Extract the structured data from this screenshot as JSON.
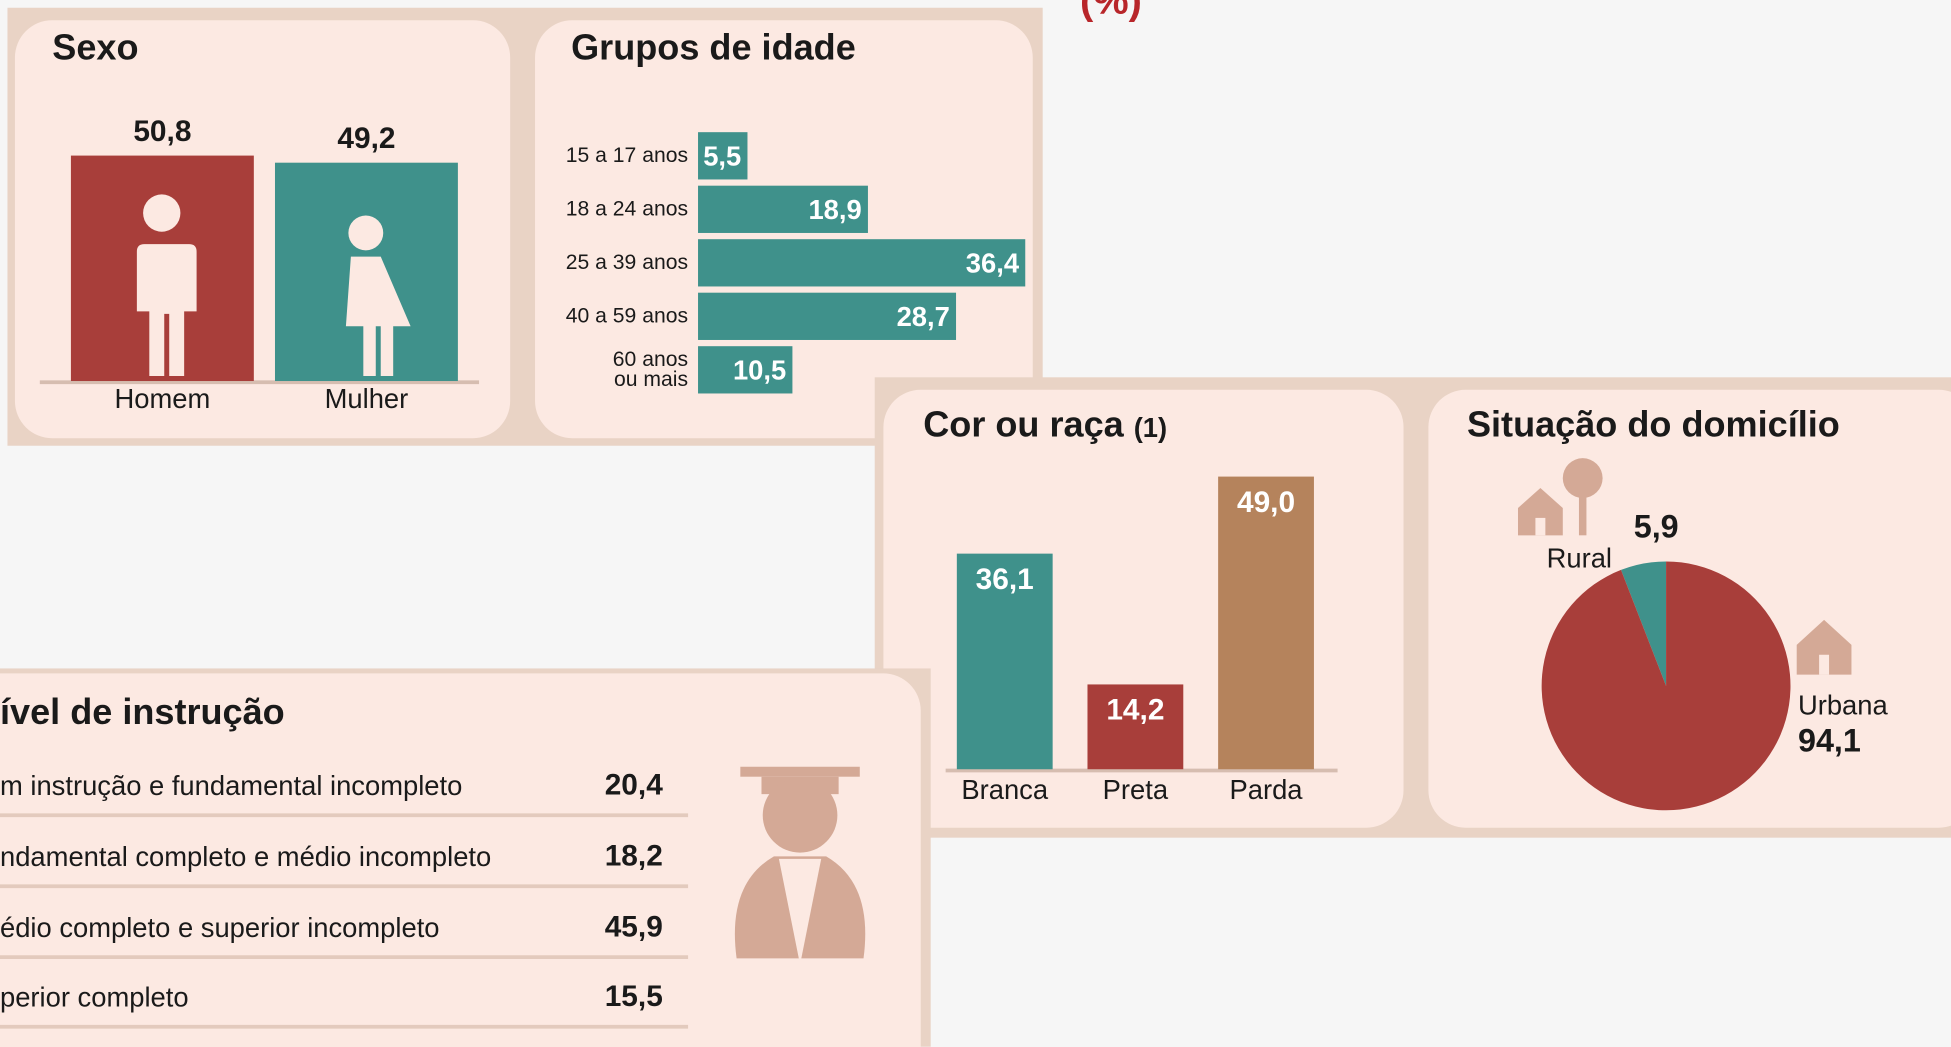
{
  "header": "(%)",
  "chart_data": [
    {
      "type": "bar",
      "title": "Sexo",
      "categories": [
        "Homem",
        "Mulher"
      ],
      "values": [
        50.8,
        49.2
      ],
      "value_labels": [
        "50,8",
        "49,2"
      ],
      "colors": [
        "#a83e3a",
        "#3f918b"
      ],
      "ylim": [
        0,
        60
      ]
    },
    {
      "type": "barh",
      "title": "Grupos de idade",
      "categories": [
        "15 a 17 anos",
        "18 a 24 anos",
        "25 a 39 anos",
        "40 a 59 anos",
        "60 anos\nou mais"
      ],
      "values": [
        5.5,
        18.9,
        36.4,
        28.7,
        10.5
      ],
      "value_labels": [
        "5,5",
        "18,9",
        "36,4",
        "28,7",
        "10,5"
      ],
      "color": "#3f918b",
      "xlim": [
        0,
        40
      ]
    },
    {
      "type": "bar",
      "title": "Cor ou raça",
      "title_note": "(1)",
      "categories": [
        "Branca",
        "Preta",
        "Parda"
      ],
      "values": [
        36.1,
        14.2,
        49.0
      ],
      "value_labels": [
        "36,1",
        "14,2",
        "49,0"
      ],
      "colors": [
        "#3f918b",
        "#a83e3a",
        "#b5835c"
      ],
      "ylim": [
        0,
        50
      ]
    },
    {
      "type": "pie",
      "title": "Situação do domicílio",
      "categories": [
        "Rural",
        "Urbana"
      ],
      "values": [
        5.9,
        94.1
      ],
      "value_labels": [
        "5,9",
        "94,1"
      ],
      "colors": [
        "#3f918b",
        "#a83e3a"
      ]
    },
    {
      "type": "list",
      "title": "ível de instrução",
      "categories": [
        "m instrução e fundamental incompleto",
        "ndamental completo e médio incompleto",
        "édio completo e superior incompleto",
        "perior completo"
      ],
      "values": [
        20.4,
        18.2,
        45.9,
        15.5
      ],
      "value_labels": [
        "20,4",
        "18,2",
        "45,9",
        "15,5"
      ]
    }
  ]
}
